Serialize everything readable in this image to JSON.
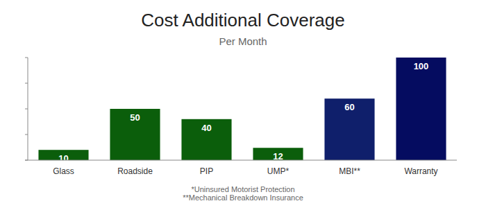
{
  "chart_data": {
    "type": "bar",
    "title": "Cost Additional Coverage",
    "subtitle": "Per Month",
    "categories": [
      "Glass",
      "Roadside",
      "PIP",
      "UMP*",
      "MBI**",
      "Warranty"
    ],
    "values": [
      10,
      50,
      40,
      12,
      60,
      100
    ],
    "colors": [
      "#0b5e0b",
      "#0b5e0b",
      "#0b5e0b",
      "#0b5e0b",
      "#0f1f6b",
      "#050c60"
    ],
    "ylim": [
      0,
      100
    ],
    "yticks": [
      0,
      25,
      50,
      75,
      100
    ],
    "grid": false,
    "data_labels": true,
    "tick_labels": "x",
    "annotations": [
      "*Uninsured Motorist Protection",
      "**Mechanical Breakdown Insurance"
    ]
  }
}
